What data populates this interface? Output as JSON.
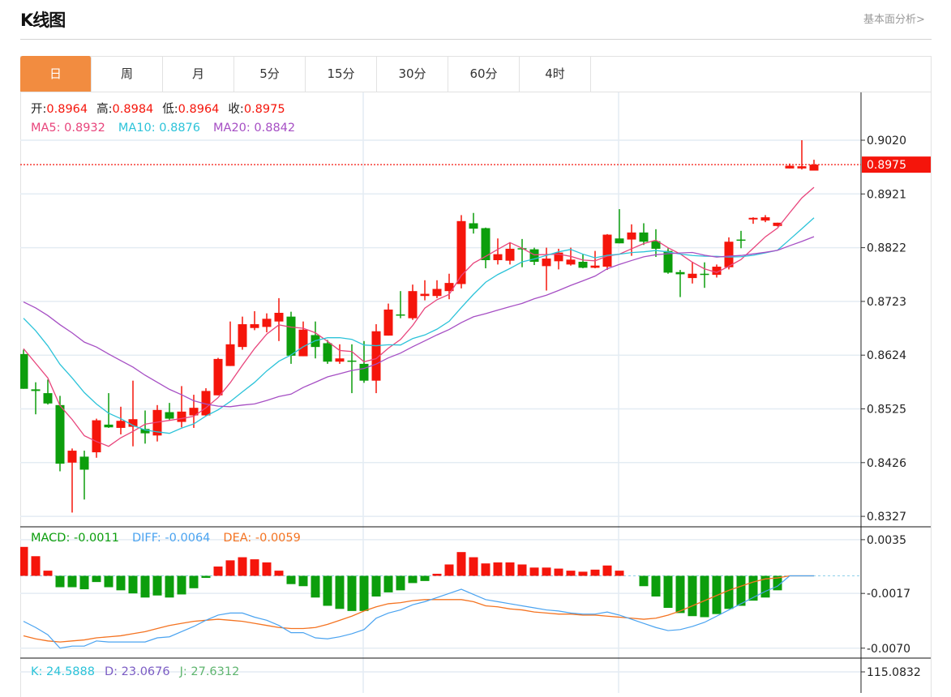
{
  "header": {
    "title": "K线图",
    "link": "基本面分析>"
  },
  "tabs": [
    {
      "label": "日",
      "active": true
    },
    {
      "label": "周"
    },
    {
      "label": "月"
    },
    {
      "label": "5分"
    },
    {
      "label": "15分"
    },
    {
      "label": "30分"
    },
    {
      "label": "60分"
    },
    {
      "label": "4时"
    }
  ],
  "legend": {
    "ohlc": [
      {
        "label": "开:",
        "value": "0.8964"
      },
      {
        "label": "高:",
        "value": "0.8984"
      },
      {
        "label": "低:",
        "value": "0.8964"
      },
      {
        "label": "收:",
        "value": "0.8975"
      }
    ],
    "ma": [
      {
        "label": "MA5: 0.8932",
        "color": "#e8457c"
      },
      {
        "label": "MA10: 0.8876",
        "color": "#2cc3d9"
      },
      {
        "label": "MA20: 0.8842",
        "color": "#a64fc4"
      }
    ],
    "macd": [
      {
        "label": "MACD: -0.0011",
        "color": "#0c9e0c"
      },
      {
        "label": "DIFF: -0.0064",
        "color": "#4aa3f0"
      },
      {
        "label": "DEA: -0.0059",
        "color": "#f47321"
      }
    ],
    "kdj": [
      {
        "label": "K: 24.5888",
        "color": "#2cc3d9"
      },
      {
        "label": "D: 23.0676",
        "color": "#7b5cc4"
      },
      {
        "label": "J: 27.6312",
        "color": "#5fb56f"
      }
    ]
  },
  "colors": {
    "up": "#f5150b",
    "down": "#0c9e0c",
    "accent": "#f28c40",
    "grid": "#e4ecf3"
  },
  "chart_data": [
    {
      "type": "candlestick",
      "fields": [
        "open",
        "high",
        "low",
        "close"
      ],
      "candles": [
        [
          0.8626,
          0.8634,
          0.8562,
          0.8562
        ],
        [
          0.8561,
          0.8574,
          0.8515,
          0.8558
        ],
        [
          0.8554,
          0.8579,
          0.8533,
          0.8535
        ],
        [
          0.8532,
          0.8549,
          0.841,
          0.8424
        ],
        [
          0.8426,
          0.8452,
          0.8334,
          0.8448
        ],
        [
          0.8437,
          0.8448,
          0.8358,
          0.8413
        ],
        [
          0.8445,
          0.8507,
          0.8435,
          0.8504
        ],
        [
          0.8496,
          0.8554,
          0.849,
          0.8491
        ],
        [
          0.849,
          0.8529,
          0.8478,
          0.8503
        ],
        [
          0.8492,
          0.8577,
          0.8456,
          0.8506
        ],
        [
          0.8488,
          0.8522,
          0.8461,
          0.848
        ],
        [
          0.8476,
          0.8532,
          0.8465,
          0.8523
        ],
        [
          0.8519,
          0.8536,
          0.8505,
          0.8507
        ],
        [
          0.8501,
          0.8567,
          0.8491,
          0.852
        ],
        [
          0.8513,
          0.8551,
          0.849,
          0.8527
        ],
        [
          0.8513,
          0.8563,
          0.8512,
          0.8558
        ],
        [
          0.855,
          0.8619,
          0.855,
          0.8617
        ],
        [
          0.8604,
          0.8686,
          0.8604,
          0.8644
        ],
        [
          0.8639,
          0.8695,
          0.8634,
          0.8681
        ],
        [
          0.8674,
          0.8705,
          0.867,
          0.8681
        ],
        [
          0.8676,
          0.8701,
          0.8666,
          0.8691
        ],
        [
          0.8686,
          0.8729,
          0.865,
          0.8702
        ],
        [
          0.8695,
          0.8704,
          0.8608,
          0.8623
        ],
        [
          0.8622,
          0.8686,
          0.8622,
          0.8671
        ],
        [
          0.8661,
          0.8686,
          0.8618,
          0.8639
        ],
        [
          0.8646,
          0.8652,
          0.8608,
          0.8612
        ],
        [
          0.8612,
          0.8644,
          0.8608,
          0.8618
        ],
        [
          0.8614,
          0.8644,
          0.8554,
          0.8613
        ],
        [
          0.8608,
          0.865,
          0.8573,
          0.8577
        ],
        [
          0.8577,
          0.8681,
          0.8554,
          0.8668
        ],
        [
          0.866,
          0.8719,
          0.866,
          0.8708
        ],
        [
          0.8699,
          0.8742,
          0.8692,
          0.8698
        ],
        [
          0.8692,
          0.8754,
          0.8689,
          0.8742
        ],
        [
          0.8733,
          0.8762,
          0.8725,
          0.8737
        ],
        [
          0.8733,
          0.8762,
          0.8729,
          0.8746
        ],
        [
          0.8742,
          0.8774,
          0.8727,
          0.8757
        ],
        [
          0.8755,
          0.8882,
          0.8747,
          0.8871
        ],
        [
          0.8867,
          0.8886,
          0.8848,
          0.8857
        ],
        [
          0.8858,
          0.8859,
          0.8784,
          0.8799
        ],
        [
          0.8799,
          0.8839,
          0.8791,
          0.881
        ],
        [
          0.8798,
          0.8832,
          0.8791,
          0.882
        ],
        [
          0.8821,
          0.8838,
          0.8786,
          0.8819
        ],
        [
          0.8819,
          0.8822,
          0.879,
          0.8796
        ],
        [
          0.8788,
          0.8822,
          0.8743,
          0.8802
        ],
        [
          0.8797,
          0.882,
          0.8782,
          0.8813
        ],
        [
          0.8791,
          0.8822,
          0.8789,
          0.88
        ],
        [
          0.8796,
          0.881,
          0.8784,
          0.8785
        ],
        [
          0.8785,
          0.8816,
          0.8784,
          0.8789
        ],
        [
          0.8787,
          0.8847,
          0.8781,
          0.8846
        ],
        [
          0.8839,
          0.8893,
          0.883,
          0.883
        ],
        [
          0.8837,
          0.8865,
          0.8807,
          0.885
        ],
        [
          0.885,
          0.8867,
          0.8827,
          0.8833
        ],
        [
          0.8834,
          0.8856,
          0.8805,
          0.882
        ],
        [
          0.8816,
          0.8821,
          0.8774,
          0.8776
        ],
        [
          0.8777,
          0.8781,
          0.8731,
          0.8773
        ],
        [
          0.8766,
          0.8796,
          0.8756,
          0.8774
        ],
        [
          0.8774,
          0.8795,
          0.8748,
          0.8772
        ],
        [
          0.8772,
          0.8791,
          0.8767,
          0.8787
        ],
        [
          0.8786,
          0.8841,
          0.8782,
          0.8833
        ],
        [
          0.8837,
          0.8853,
          0.8821,
          0.8835
        ],
        [
          0.8874,
          0.8878,
          0.8866,
          0.8877
        ],
        [
          0.8872,
          0.8882,
          0.8869,
          0.8878
        ],
        [
          0.8862,
          0.8868,
          0.8861,
          0.8868
        ],
        [
          0.8968,
          0.8977,
          0.8968,
          0.8973
        ],
        [
          0.8968,
          0.902,
          0.8966,
          0.8972
        ],
        [
          0.8964,
          0.8984,
          0.8964,
          0.8975
        ]
      ],
      "ma_leading": {
        "ma5": [
          0.8636,
          0.8609,
          0.8582,
          0.8531
        ],
        "ma10": [
          0.8692,
          0.8669,
          0.8641,
          0.8607,
          0.8582,
          0.8555,
          0.8534,
          0.8517,
          0.8507
        ],
        "ma20": [
          0.8722,
          0.8711,
          0.8697,
          0.868,
          0.8665,
          0.8648,
          0.8639,
          0.8626,
          0.8614,
          0.8602,
          0.8587,
          0.8574,
          0.8561,
          0.8551,
          0.854,
          0.8534,
          0.853,
          0.8529,
          0.8532
        ]
      },
      "last_price": "0.8975",
      "y_ticks": [
        "0.9020",
        "0.8921",
        "0.8822",
        "0.8723",
        "0.8624",
        "0.8525",
        "0.8426",
        "0.8327"
      ],
      "ylim": [
        0.8327,
        0.902
      ]
    },
    {
      "type": "bar+line",
      "name": "MACD",
      "histogram": [
        0.0028,
        0.0019,
        0.0005,
        -0.0011,
        -0.0011,
        -0.0013,
        -0.0006,
        -0.0011,
        -0.0014,
        -0.0017,
        -0.0021,
        -0.0019,
        -0.0021,
        -0.0018,
        -0.0012,
        -0.0002,
        0.0009,
        0.0015,
        0.0018,
        0.0016,
        0.0013,
        0.0005,
        -0.0008,
        -0.001,
        -0.0021,
        -0.0029,
        -0.0032,
        -0.0034,
        -0.0034,
        -0.002,
        -0.0016,
        -0.0014,
        -0.0007,
        -0.0005,
        0.0002,
        0.0011,
        0.0023,
        0.0018,
        0.0012,
        0.0013,
        0.0013,
        0.0011,
        0.0008,
        0.0008,
        0.0007,
        0.0005,
        0.0004,
        0.0006,
        0.001,
        0.0005,
        0,
        -0.001,
        -0.002,
        -0.0031,
        -0.0036,
        -0.0039,
        -0.004,
        -0.0037,
        -0.0032,
        -0.0029,
        -0.0024,
        -0.0021,
        -0.0014,
        0,
        0,
        0
      ],
      "diff": [
        -0.0044,
        -0.005,
        -0.0057,
        -0.007,
        -0.0068,
        -0.0068,
        -0.0063,
        -0.0064,
        -0.0064,
        -0.0064,
        -0.0064,
        -0.006,
        -0.0059,
        -0.0054,
        -0.0049,
        -0.0043,
        -0.0038,
        -0.0036,
        -0.0036,
        -0.004,
        -0.0043,
        -0.0048,
        -0.0055,
        -0.0055,
        -0.006,
        -0.0061,
        -0.0059,
        -0.0056,
        -0.0052,
        -0.0041,
        -0.0036,
        -0.0033,
        -0.0028,
        -0.0025,
        -0.0021,
        -0.0017,
        -0.0013,
        -0.0018,
        -0.0023,
        -0.0025,
        -0.0027,
        -0.0029,
        -0.0031,
        -0.0033,
        -0.0034,
        -0.0036,
        -0.0037,
        -0.0037,
        -0.0035,
        -0.0038,
        -0.0042,
        -0.0046,
        -0.005,
        -0.0053,
        -0.0052,
        -0.0049,
        -0.0045,
        -0.0039,
        -0.0033,
        -0.0027,
        -0.0021,
        -0.0015,
        -0.001,
        0,
        0,
        0
      ],
      "dea": [
        -0.0058,
        -0.0061,
        -0.0063,
        -0.0064,
        -0.0063,
        -0.0062,
        -0.006,
        -0.0059,
        -0.0058,
        -0.0056,
        -0.0054,
        -0.0051,
        -0.0048,
        -0.0046,
        -0.0044,
        -0.0043,
        -0.0042,
        -0.0043,
        -0.0044,
        -0.0046,
        -0.0048,
        -0.005,
        -0.0051,
        -0.0051,
        -0.005,
        -0.0047,
        -0.0043,
        -0.0039,
        -0.0034,
        -0.003,
        -0.0027,
        -0.0026,
        -0.0024,
        -0.0023,
        -0.0023,
        -0.0023,
        -0.0023,
        -0.0025,
        -0.0029,
        -0.003,
        -0.0032,
        -0.0033,
        -0.0035,
        -0.0036,
        -0.0037,
        -0.0037,
        -0.0038,
        -0.0038,
        -0.0039,
        -0.004,
        -0.0041,
        -0.0042,
        -0.0041,
        -0.0038,
        -0.0034,
        -0.0029,
        -0.0024,
        -0.0019,
        -0.0014,
        -0.001,
        -0.0006,
        -0.0003,
        -0.0002,
        0,
        0,
        0
      ],
      "y_ticks": [
        "0.0035",
        "-0.0017",
        "-0.0070"
      ]
    },
    {
      "type": "line",
      "name": "KDJ",
      "y_ticks": [
        "115.0832"
      ]
    }
  ]
}
